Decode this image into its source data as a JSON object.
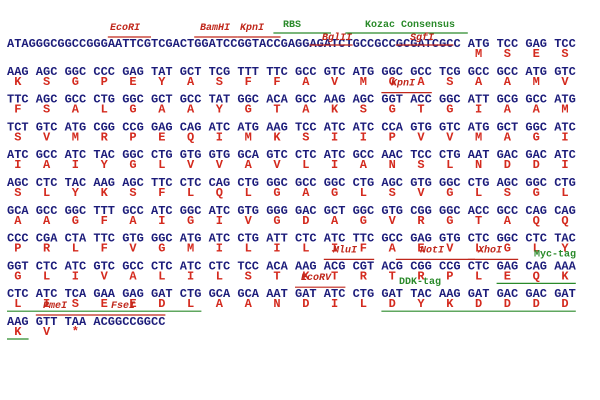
{
  "rows": [
    {
      "codons": [
        "ATAGGGCGGCCGGGAATTCGTCGACTGGATCCGGTACCGAGGAGATCTGCCGCCGCGATCGCC",
        "ATG",
        "TCC",
        "GAG",
        "TCC"
      ],
      "aa": [
        null,
        "M",
        "S",
        "E",
        "S"
      ]
    },
    {
      "codons": [
        "AAG",
        "AGC",
        "GGC",
        "CCC",
        "GAG",
        "TAT",
        "GCT",
        "TCG",
        "TTT",
        "TTC",
        "GCC",
        "GTC",
        "ATG",
        "GGC",
        "GCC",
        "TCG",
        "GCC",
        "GCC",
        "ATG",
        "GTC"
      ],
      "aa": [
        "K",
        "S",
        "G",
        "P",
        "E",
        "Y",
        "A",
        "S",
        "F",
        "F",
        "A",
        "V",
        "M",
        "G",
        "A",
        "S",
        "A",
        "A",
        "M",
        "V"
      ]
    },
    {
      "codons": [
        "TTC",
        "AGC",
        "GCC",
        "CTG",
        "GGC",
        "GCT",
        "GCC",
        "TAT",
        "GGC",
        "ACA",
        "GCC",
        "AAG",
        "AGC",
        "GGT",
        "ACC",
        "GGC",
        "ATT",
        "GCG",
        "GCC",
        "ATG"
      ],
      "aa": [
        "F",
        "S",
        "A",
        "L",
        "G",
        "A",
        "A",
        "Y",
        "G",
        "T",
        "A",
        "K",
        "S",
        "G",
        "T",
        "G",
        "I",
        "A",
        "A",
        "M"
      ]
    },
    {
      "codons": [
        "TCT",
        "GTC",
        "ATG",
        "CGG",
        "CCG",
        "GAG",
        "CAG",
        "ATC",
        "ATG",
        "AAG",
        "TCC",
        "ATC",
        "ATC",
        "CCA",
        "GTG",
        "GTC",
        "ATG",
        "GCT",
        "GGC",
        "ATC"
      ],
      "aa": [
        "S",
        "V",
        "M",
        "R",
        "P",
        "E",
        "Q",
        "I",
        "M",
        "K",
        "S",
        "I",
        "I",
        "P",
        "V",
        "V",
        "M",
        "A",
        "G",
        "I"
      ]
    },
    {
      "codons": [
        "ATC",
        "GCC",
        "ATC",
        "TAC",
        "GGC",
        "CTG",
        "GTG",
        "GTG",
        "GCA",
        "GTC",
        "CTC",
        "ATC",
        "GCC",
        "AAC",
        "TCC",
        "CTG",
        "AAT",
        "GAC",
        "GAC",
        "ATC"
      ],
      "aa": [
        "I",
        "A",
        "I",
        "Y",
        "G",
        "L",
        "V",
        "V",
        "A",
        "V",
        "L",
        "I",
        "A",
        "N",
        "S",
        "L",
        "N",
        "D",
        "D",
        "I"
      ]
    },
    {
      "codons": [
        "AGC",
        "CTC",
        "TAC",
        "AAG",
        "AGC",
        "TTC",
        "CTC",
        "CAG",
        "CTG",
        "GGC",
        "GCC",
        "GGC",
        "CTG",
        "AGC",
        "GTG",
        "GGC",
        "CTG",
        "AGC",
        "GGC",
        "CTG"
      ],
      "aa": [
        "S",
        "L",
        "Y",
        "K",
        "S",
        "F",
        "L",
        "Q",
        "L",
        "G",
        "A",
        "G",
        "L",
        "S",
        "V",
        "G",
        "L",
        "S",
        "G",
        "L"
      ]
    },
    {
      "codons": [
        "GCA",
        "GCC",
        "GGC",
        "TTT",
        "GCC",
        "ATC",
        "GGC",
        "ATC",
        "GTG",
        "GGG",
        "GAC",
        "GCT",
        "GGC",
        "GTG",
        "CGG",
        "GGC",
        "ACC",
        "GCC",
        "CAG",
        "CAG"
      ],
      "aa": [
        "A",
        "A",
        "G",
        "F",
        "A",
        "I",
        "G",
        "I",
        "V",
        "G",
        "D",
        "A",
        "G",
        "V",
        "R",
        "G",
        "T",
        "A",
        "Q",
        "Q"
      ]
    },
    {
      "codons": [
        "CCC",
        "CGA",
        "CTA",
        "TTC",
        "GTG",
        "GGC",
        "ATG",
        "ATC",
        "CTG",
        "ATT",
        "CTC",
        "ATC",
        "TTC",
        "GCC",
        "GAG",
        "GTG",
        "CTC",
        "GGC",
        "CTC",
        "TAC"
      ],
      "aa": [
        "P",
        "R",
        "L",
        "F",
        "V",
        "G",
        "M",
        "I",
        "L",
        "I",
        "L",
        "I",
        "F",
        "A",
        "E",
        "V",
        "L",
        "G",
        "L",
        "Y"
      ]
    },
    {
      "codons": [
        "GGT",
        "CTC",
        "ATC",
        "GTC",
        "GCC",
        "CTC",
        "ATC",
        "CTC",
        "TCC",
        "ACA",
        "AAG",
        "ACG",
        "CGT",
        "ACG",
        "CGG",
        "CCG",
        "CTC",
        "GAG",
        "CAG",
        "AAA"
      ],
      "aa": [
        "G",
        "L",
        "I",
        "V",
        "A",
        "L",
        "I",
        "L",
        "S",
        "T",
        "K",
        "T",
        "R",
        "T",
        "R",
        "P",
        "L",
        "E",
        "Q",
        "K"
      ]
    },
    {
      "codons": [
        "CTC",
        "ATC",
        "TCA",
        "GAA",
        "GAG",
        "GAT",
        "CTG",
        "GCA",
        "GCA",
        "AAT",
        "GAT",
        "ATC",
        "CTG",
        "GAT",
        "TAC",
        "AAG",
        "GAT",
        "GAC",
        "GAC",
        "GAT"
      ],
      "aa": [
        "L",
        "I",
        "S",
        "E",
        "E",
        "D",
        "L",
        "A",
        "A",
        "N",
        "D",
        "I",
        "L",
        "D",
        "Y",
        "K",
        "D",
        "D",
        "D",
        "D"
      ]
    },
    {
      "codons": [
        "AAG",
        "GTT",
        "TAA",
        "ACGGCCGGCC"
      ],
      "aa": [
        "K",
        "V",
        "*",
        null
      ]
    }
  ],
  "features": [
    {
      "label": "EcoRI"
    },
    {
      "label": "BamHI"
    },
    {
      "label": "KpnI"
    },
    {
      "label": "RBS"
    },
    {
      "label": "BglII"
    },
    {
      "label": "Kozac Consensus"
    },
    {
      "label": "SgfI"
    },
    {
      "label": "KpnI"
    },
    {
      "label": "MluI"
    },
    {
      "label": "NotI"
    },
    {
      "label": "XhoI"
    },
    {
      "label": "Myc-tag"
    },
    {
      "label": "EcoRV"
    },
    {
      "label": "DDK-tag"
    },
    {
      "label": "PmeI"
    },
    {
      "label": "FseI"
    }
  ]
}
